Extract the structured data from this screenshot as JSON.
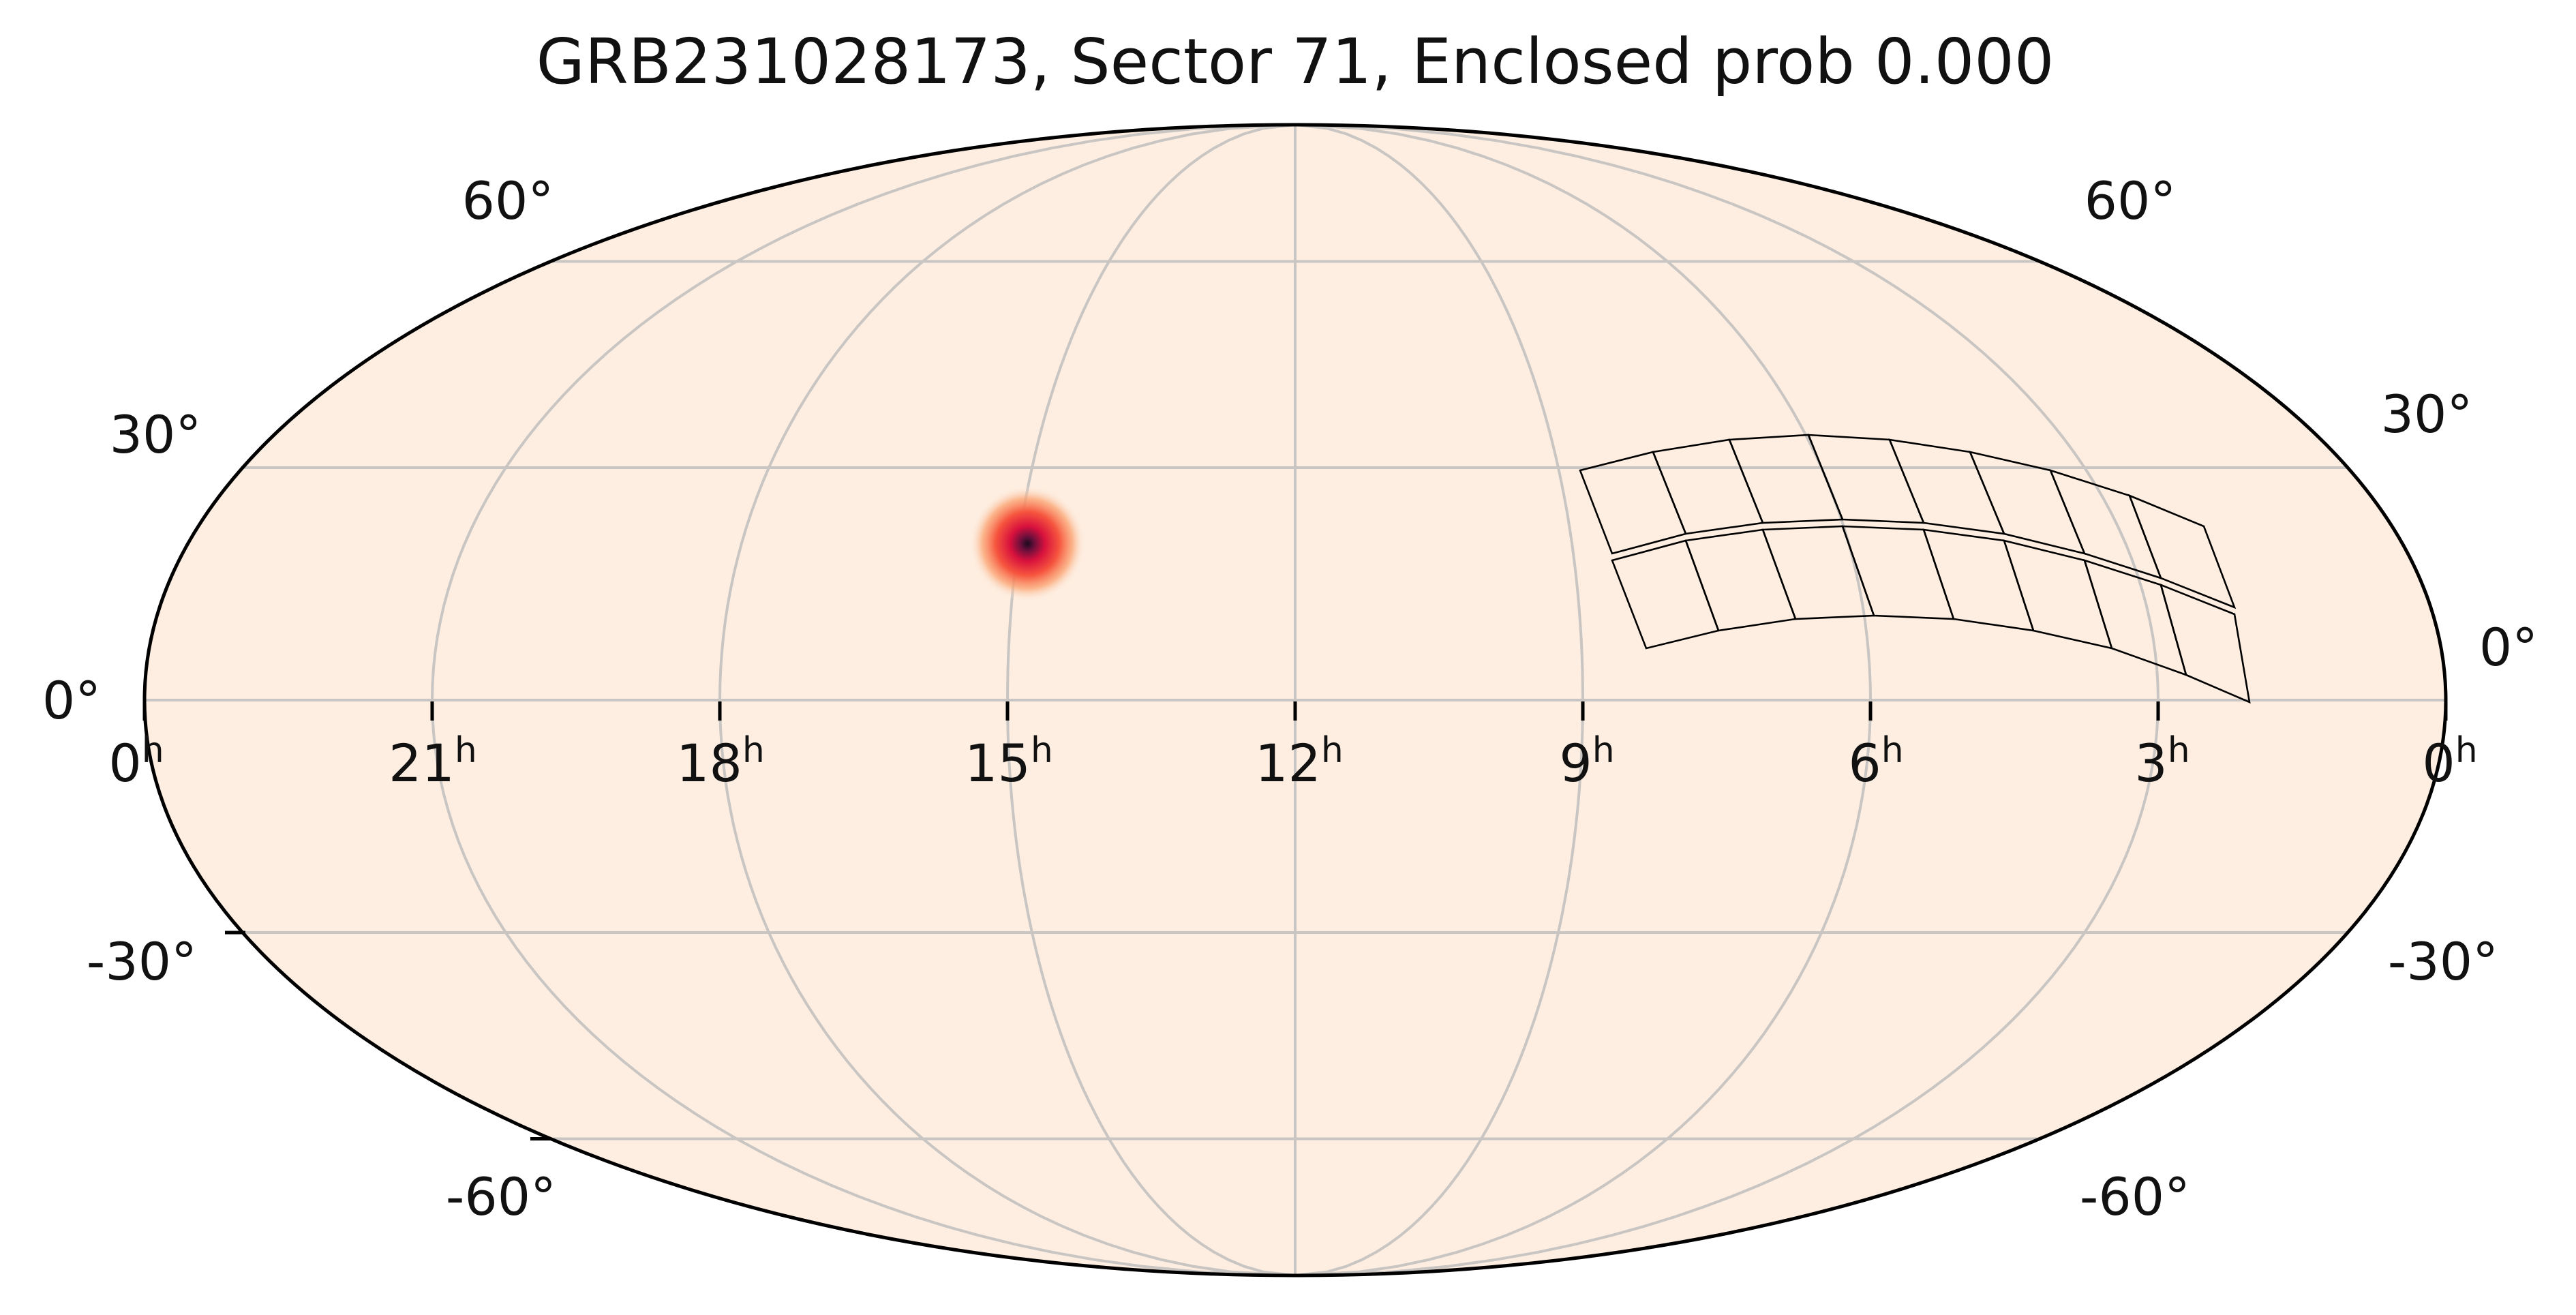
{
  "title": "GRB231028173, Sector 71, Enclosed prob 0.000",
  "projection": "mollweide",
  "colors": {
    "background": "#fdeee1",
    "grid": "#c9c5c2",
    "outline": "#000000",
    "probability_peak": "#1a0a1e",
    "probability_mid": "#d8113d",
    "probability_edge": "#fba26f"
  },
  "ra_ticks": [
    {
      "value": "0",
      "unit": "h"
    },
    {
      "value": "21",
      "unit": "h"
    },
    {
      "value": "18",
      "unit": "h"
    },
    {
      "value": "15",
      "unit": "h"
    },
    {
      "value": "12",
      "unit": "h"
    },
    {
      "value": "9",
      "unit": "h"
    },
    {
      "value": "6",
      "unit": "h"
    },
    {
      "value": "3",
      "unit": "h"
    },
    {
      "value": "0",
      "unit": "h"
    }
  ],
  "dec_ticks": [
    "60°",
    "30°",
    "0°",
    "-30°",
    "-60°"
  ],
  "probability_blob": {
    "ra_hours": 14.9,
    "dec_deg": 20
  },
  "sector_footprint": {
    "sector": 71,
    "ccd_columns": 8,
    "ccd_rows": 2,
    "cameras": 4
  }
}
